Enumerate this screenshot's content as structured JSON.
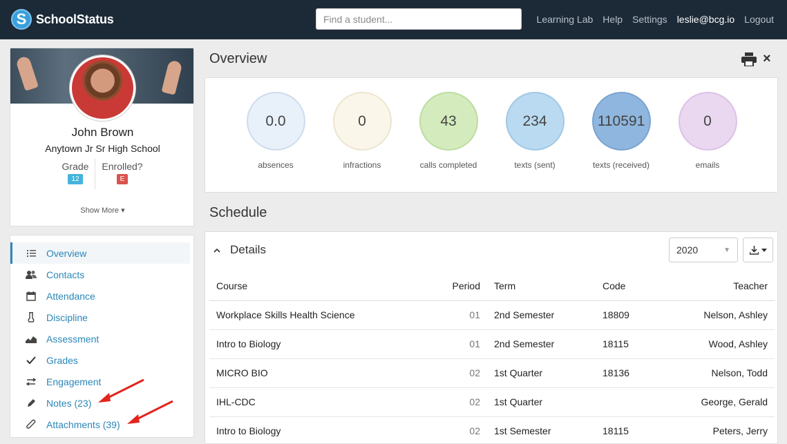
{
  "topnav": {
    "brand": "SchoolStatus",
    "brand_initial": "S",
    "search_placeholder": "Find a student...",
    "links": [
      "Learning Lab",
      "Help",
      "Settings"
    ],
    "user": "leslie@bcg.io",
    "logout": "Logout"
  },
  "profile": {
    "name": "John Brown",
    "school": "Anytown Jr Sr High School",
    "grade_label": "Grade",
    "grade_value": "12",
    "enrolled_label": "Enrolled?",
    "enrolled_value": "E",
    "show_more": "Show More ▾"
  },
  "sidebar": {
    "items": [
      {
        "label": "Overview",
        "icon": "list-icon"
      },
      {
        "label": "Contacts",
        "icon": "users-icon"
      },
      {
        "label": "Attendance",
        "icon": "calendar-icon"
      },
      {
        "label": "Discipline",
        "icon": "flask-icon"
      },
      {
        "label": "Assessment",
        "icon": "area-chart-icon"
      },
      {
        "label": "Grades",
        "icon": "check-icon"
      },
      {
        "label": "Engagement",
        "icon": "exchange-icon"
      },
      {
        "label": "Notes (23)",
        "icon": "pencil-icon"
      },
      {
        "label": "Attachments (39)",
        "icon": "paperclip-icon"
      }
    ]
  },
  "overview": {
    "title": "Overview",
    "metrics": [
      {
        "value": "0.0",
        "label": "absences",
        "fill": "#e8f0fa",
        "stroke": "#cfdced"
      },
      {
        "value": "0",
        "label": "infractions",
        "fill": "#faf6ea",
        "stroke": "#ece5d0"
      },
      {
        "value": "43",
        "label": "calls completed",
        "fill": "#d4ecbd",
        "stroke": "#bcdca0"
      },
      {
        "value": "234",
        "label": "texts (sent)",
        "fill": "#b9daf0",
        "stroke": "#a2c8e4"
      },
      {
        "value": "110591",
        "label": "texts (received)",
        "fill": "#8fb6de",
        "stroke": "#7aa4cf"
      },
      {
        "value": "0",
        "label": "emails",
        "fill": "#ead7f0",
        "stroke": "#dcc2e6"
      }
    ]
  },
  "schedule": {
    "title": "Schedule",
    "details_label": "Details",
    "year": "2020",
    "columns": [
      "Course",
      "Period",
      "Term",
      "Code",
      "Teacher"
    ],
    "rows": [
      [
        "Workplace Skills Health Science",
        "01",
        "2nd Semester",
        "18809",
        "Nelson, Ashley"
      ],
      [
        "Intro to Biology",
        "01",
        "2nd Semester",
        "18115",
        "Wood, Ashley"
      ],
      [
        "MICRO BIO",
        "02",
        "1st Quarter",
        "18136",
        "Nelson, Todd"
      ],
      [
        "IHL-CDC",
        "02",
        "1st Quarter",
        "",
        "George, Gerald"
      ],
      [
        "Intro to Biology",
        "02",
        "1st Semester",
        "18115",
        "Peters, Jerry"
      ]
    ]
  },
  "colors": {
    "nav_bg": "#1c2a38",
    "link": "#2a87b8",
    "arrow": "#e3241b"
  }
}
